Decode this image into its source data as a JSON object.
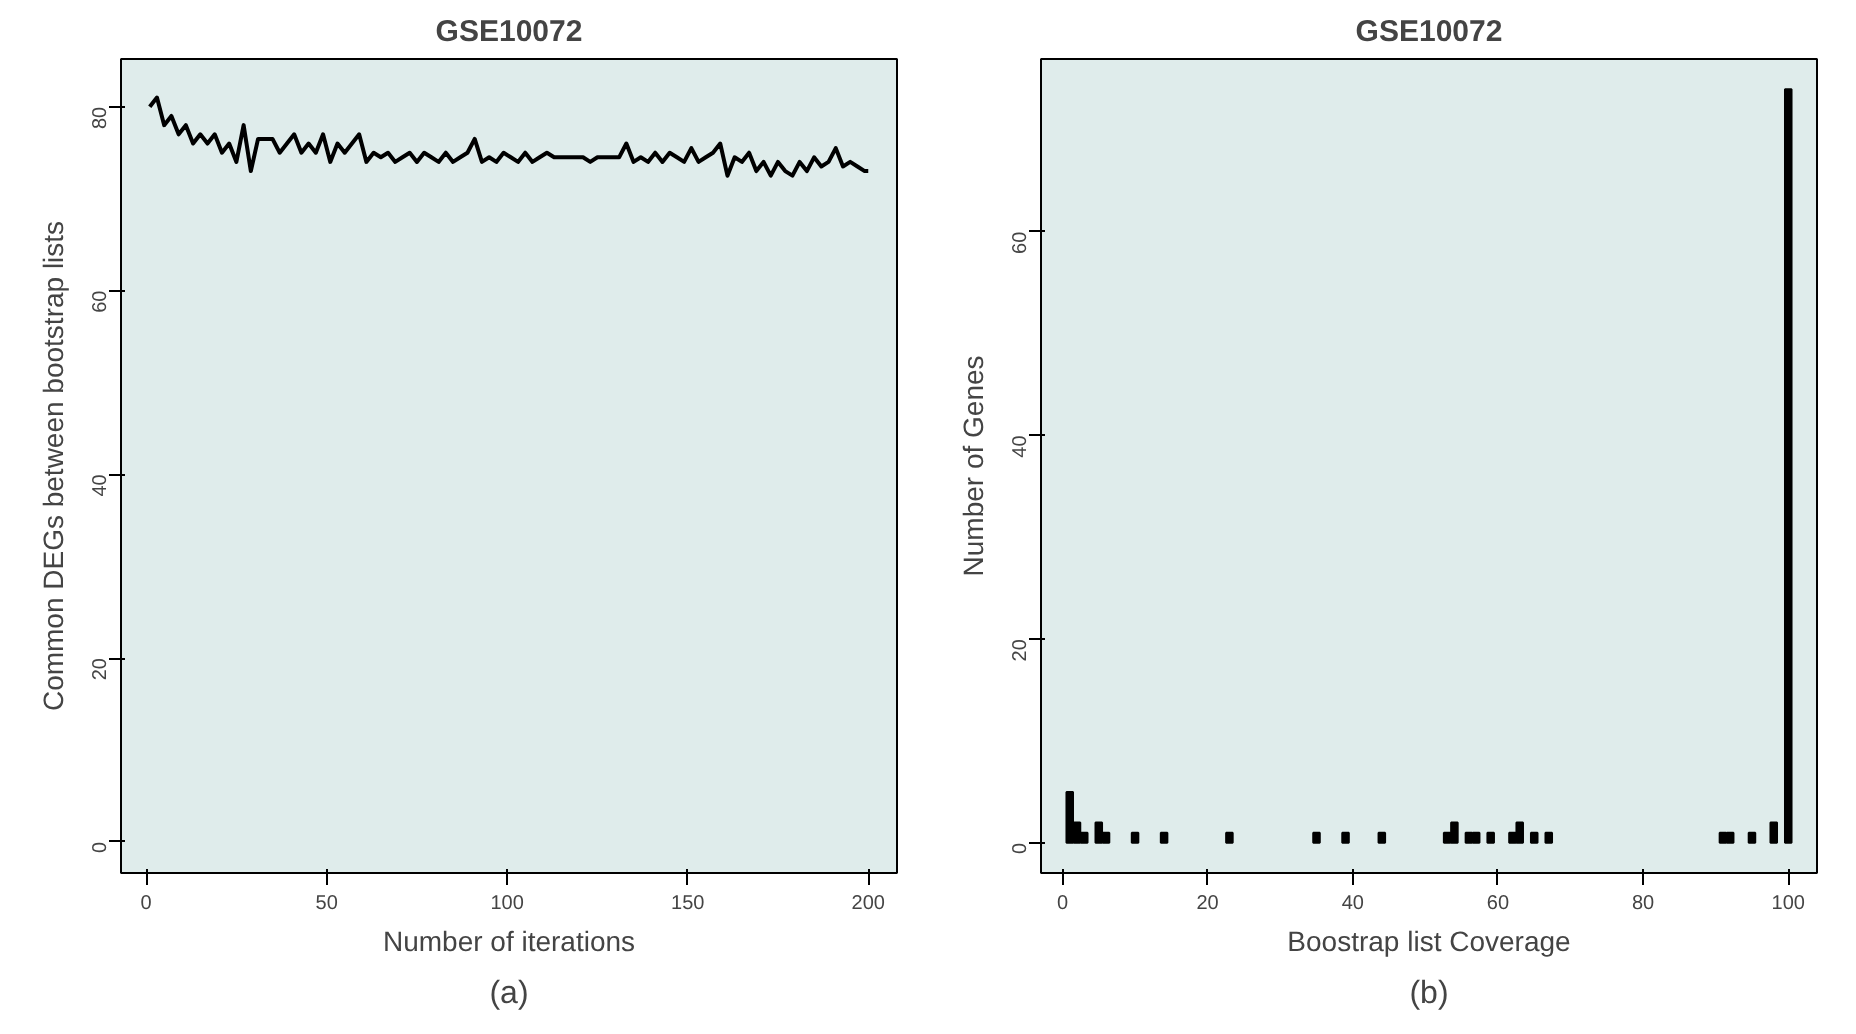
{
  "chart_data": [
    {
      "type": "line",
      "title": "GSE10072",
      "xlabel": "Number of iterations",
      "ylabel": "Common DEGs between bootstrap lists",
      "annotations": [
        "(a)"
      ],
      "xlim": [
        -6.96,
        207.96
      ],
      "ylim": [
        -3.4,
        85.2
      ],
      "xticks": [
        0,
        50,
        100,
        150,
        200
      ],
      "yticks": [
        0,
        20,
        40,
        60,
        80
      ],
      "grid": false,
      "x": [
        1,
        3,
        5,
        7,
        9,
        11,
        13,
        15,
        17,
        19,
        21,
        23,
        25,
        27,
        29,
        31,
        33,
        35,
        37,
        39,
        41,
        43,
        45,
        47,
        49,
        51,
        53,
        55,
        57,
        59,
        61,
        63,
        65,
        67,
        69,
        71,
        73,
        75,
        77,
        79,
        81,
        83,
        85,
        87,
        89,
        91,
        93,
        95,
        97,
        99,
        101,
        103,
        105,
        107,
        109,
        111,
        113,
        115,
        117,
        119,
        121,
        123,
        125,
        127,
        129,
        131,
        133,
        135,
        137,
        139,
        141,
        143,
        145,
        147,
        149,
        151,
        153,
        155,
        157,
        159,
        161,
        163,
        165,
        167,
        169,
        171,
        173,
        175,
        177,
        179,
        181,
        183,
        185,
        187,
        189,
        191,
        193,
        195,
        197,
        199,
        200
      ],
      "series": [
        {
          "color": "#000000",
          "values": [
            80,
            81,
            78,
            79,
            77,
            78,
            76,
            77,
            76,
            77,
            75,
            76,
            74,
            78,
            73,
            76.5,
            76.5,
            76.5,
            75,
            76,
            77,
            75,
            76,
            75,
            77,
            74,
            76,
            75,
            76,
            77,
            74,
            75,
            74.5,
            75,
            74,
            74.5,
            75,
            74,
            75,
            74.5,
            74,
            75,
            74,
            74.5,
            75,
            76.5,
            74,
            74.5,
            74,
            75,
            74.5,
            74,
            75,
            74,
            74.5,
            75,
            74.5,
            74.5,
            74.5,
            74.5,
            74.5,
            74,
            74.5,
            74.5,
            74.5,
            74.5,
            76,
            74,
            74.5,
            74,
            75,
            74,
            75,
            74.5,
            74,
            75.5,
            74,
            74.5,
            75,
            76,
            72.5,
            74.5,
            74,
            75,
            73,
            74,
            72.5,
            74,
            73,
            72.5,
            74,
            73,
            74.5,
            73.5,
            74,
            75.5,
            73.5,
            74,
            73.5,
            73,
            73
          ]
        }
      ]
    },
    {
      "type": "bar",
      "title": "GSE10072",
      "xlabel": "Boostrap list Coverage",
      "ylabel": "Number of Genes",
      "annotations": [
        "(b)"
      ],
      "xlim": [
        -2.96,
        103.96
      ],
      "ylim": [
        -2.96,
        76.96
      ],
      "xticks": [
        0,
        20,
        40,
        60,
        80,
        100
      ],
      "yticks": [
        0,
        20,
        40,
        60
      ],
      "grid": false,
      "x": [
        1,
        2,
        3,
        5,
        6,
        10,
        14,
        23,
        35,
        39,
        44,
        53,
        54,
        56,
        57,
        59,
        62,
        63,
        65,
        67,
        91,
        92,
        95,
        98,
        100
      ],
      "series": [
        {
          "color": "#000000",
          "values": [
            5,
            2,
            1,
            2,
            1,
            1,
            1,
            1,
            1,
            1,
            1,
            1,
            2,
            1,
            1,
            1,
            1,
            2,
            1,
            1,
            1,
            1,
            1,
            2,
            74
          ]
        }
      ]
    }
  ]
}
